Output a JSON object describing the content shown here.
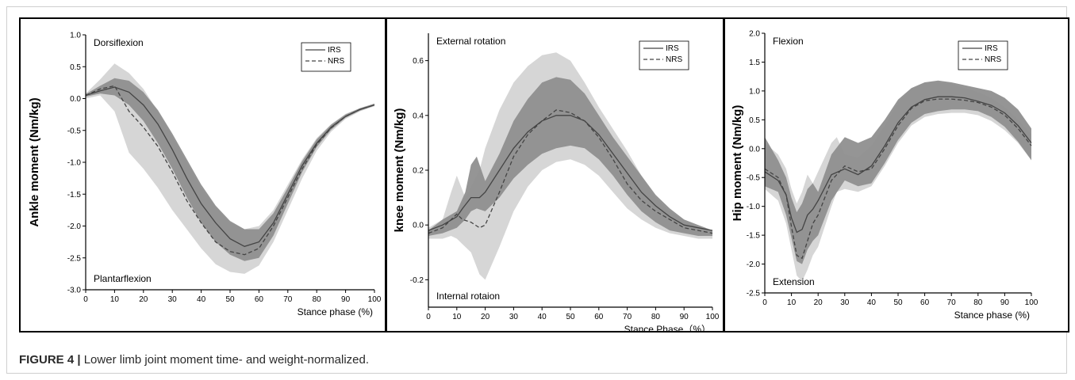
{
  "caption": {
    "label": "FIGURE 4 |",
    "text": " Lower limb joint moment time- and weight-normalized."
  },
  "colors": {
    "band_light": "#d6d6d6",
    "band_dark": "#8f8f8f",
    "line": "#444444"
  },
  "chart_data": [
    {
      "type": "line",
      "ylabel": "Ankle moment (Nm/kg)",
      "xlabel": "Stance phase (%)",
      "annot_top": "Dorsiflexion",
      "annot_bottom": "Plantarflexion",
      "xlim": [
        0,
        100
      ],
      "ylim": [
        -3.0,
        1.0
      ],
      "x_ticks": [
        "0",
        "10",
        "20",
        "30",
        "40",
        "50",
        "60",
        "70",
        "80",
        "90",
        "100"
      ],
      "y_ticks": [
        "1.0",
        "0.5",
        "0.0",
        "-0.5",
        "-1.0",
        "-1.5",
        "-2.0",
        "-2.5",
        "-3.0"
      ],
      "legend": "top-right",
      "series": [
        {
          "name": "IRS",
          "style": "solid",
          "x": [
            0,
            5,
            10,
            15,
            20,
            25,
            30,
            35,
            40,
            45,
            50,
            55,
            60,
            65,
            70,
            75,
            80,
            85,
            90,
            95,
            100
          ],
          "y": [
            0.05,
            0.12,
            0.18,
            0.1,
            -0.1,
            -0.4,
            -0.8,
            -1.25,
            -1.65,
            -1.95,
            -2.2,
            -2.32,
            -2.25,
            -1.95,
            -1.5,
            -1.05,
            -0.7,
            -0.45,
            -0.28,
            -0.17,
            -0.1
          ]
        },
        {
          "name": "NRS",
          "style": "dashed",
          "x": [
            0,
            5,
            10,
            15,
            20,
            25,
            30,
            35,
            40,
            45,
            50,
            55,
            60,
            65,
            70,
            75,
            80,
            85,
            90,
            95,
            100
          ],
          "y": [
            0.05,
            0.15,
            0.2,
            -0.2,
            -0.45,
            -0.75,
            -1.15,
            -1.6,
            -1.95,
            -2.25,
            -2.4,
            -2.45,
            -2.35,
            -2.0,
            -1.55,
            -1.1,
            -0.72,
            -0.46,
            -0.28,
            -0.17,
            -0.1
          ]
        }
      ],
      "band_light": {
        "x": [
          0,
          5,
          10,
          15,
          20,
          25,
          30,
          35,
          40,
          45,
          50,
          55,
          60,
          65,
          70,
          75,
          80,
          85,
          90,
          95,
          100
        ],
        "upper": [
          0.08,
          0.3,
          0.55,
          0.4,
          0.15,
          -0.2,
          -0.6,
          -1.0,
          -1.4,
          -1.7,
          -1.95,
          -2.05,
          -2.0,
          -1.75,
          -1.35,
          -0.95,
          -0.62,
          -0.4,
          -0.24,
          -0.15,
          -0.08
        ],
        "lower": [
          0.0,
          0.05,
          -0.2,
          -0.85,
          -1.1,
          -1.4,
          -1.75,
          -2.05,
          -2.35,
          -2.6,
          -2.72,
          -2.75,
          -2.62,
          -2.25,
          -1.75,
          -1.25,
          -0.82,
          -0.52,
          -0.32,
          -0.2,
          -0.12
        ]
      },
      "band_dark": {
        "x": [
          0,
          5,
          10,
          15,
          20,
          25,
          30,
          35,
          40,
          45,
          50,
          55,
          60,
          65,
          70,
          75,
          80,
          85,
          90,
          95,
          100
        ],
        "upper": [
          0.07,
          0.2,
          0.32,
          0.28,
          0.1,
          -0.18,
          -0.55,
          -0.95,
          -1.35,
          -1.68,
          -1.92,
          -2.05,
          -2.05,
          -1.8,
          -1.4,
          -0.98,
          -0.64,
          -0.41,
          -0.25,
          -0.15,
          -0.08
        ],
        "lower": [
          0.03,
          0.08,
          0.05,
          -0.1,
          -0.35,
          -0.7,
          -1.1,
          -1.55,
          -1.95,
          -2.25,
          -2.45,
          -2.55,
          -2.5,
          -2.15,
          -1.65,
          -1.15,
          -0.76,
          -0.49,
          -0.3,
          -0.19,
          -0.11
        ]
      }
    },
    {
      "type": "line",
      "ylabel": "knee moment (Nm/kg)",
      "xlabel": "Stance Phase（%）",
      "annot_top": "External rotation",
      "annot_bottom": "Internal rotaion",
      "xlim": [
        0,
        100
      ],
      "ylim": [
        -0.3,
        0.7
      ],
      "x_ticks": [
        "0",
        "10",
        "20",
        "30",
        "40",
        "50",
        "60",
        "70",
        "80",
        "90",
        "100"
      ],
      "y_ticks": [
        "0.6",
        "0.4",
        "0.2",
        "0.0",
        "-0.2"
      ],
      "legend": "top-right",
      "series": [
        {
          "name": "IRS",
          "style": "solid",
          "x": [
            0,
            5,
            10,
            12,
            15,
            18,
            20,
            25,
            30,
            35,
            40,
            45,
            50,
            55,
            60,
            65,
            70,
            75,
            80,
            85,
            90,
            95,
            100
          ],
          "y": [
            -0.02,
            0.0,
            0.03,
            0.06,
            0.1,
            0.1,
            0.12,
            0.2,
            0.28,
            0.34,
            0.38,
            0.4,
            0.4,
            0.38,
            0.33,
            0.26,
            0.19,
            0.12,
            0.07,
            0.03,
            0.0,
            -0.01,
            -0.02
          ]
        },
        {
          "name": "NRS",
          "style": "dashed",
          "x": [
            0,
            5,
            10,
            12,
            15,
            18,
            20,
            25,
            30,
            35,
            40,
            45,
            50,
            55,
            60,
            65,
            70,
            75,
            80,
            85,
            90,
            95,
            100
          ],
          "y": [
            -0.03,
            -0.01,
            0.04,
            0.02,
            0.01,
            -0.01,
            0.0,
            0.12,
            0.25,
            0.33,
            0.38,
            0.42,
            0.41,
            0.38,
            0.32,
            0.24,
            0.15,
            0.09,
            0.05,
            0.02,
            -0.01,
            -0.02,
            -0.03
          ]
        }
      ],
      "band_light": {
        "x": [
          0,
          5,
          8,
          10,
          13,
          15,
          18,
          20,
          25,
          30,
          35,
          40,
          45,
          50,
          55,
          60,
          65,
          70,
          75,
          80,
          85,
          90,
          95,
          100
        ],
        "upper": [
          -0.01,
          0.02,
          0.12,
          0.18,
          0.1,
          0.14,
          0.2,
          0.28,
          0.42,
          0.52,
          0.58,
          0.62,
          0.63,
          0.6,
          0.52,
          0.43,
          0.35,
          0.27,
          0.18,
          0.1,
          0.05,
          0.02,
          -0.01,
          -0.02
        ],
        "lower": [
          -0.05,
          -0.05,
          -0.04,
          -0.05,
          -0.08,
          -0.1,
          -0.18,
          -0.2,
          -0.08,
          0.05,
          0.14,
          0.2,
          0.23,
          0.24,
          0.22,
          0.18,
          0.12,
          0.06,
          0.02,
          -0.01,
          -0.03,
          -0.04,
          -0.05,
          -0.05
        ]
      },
      "band_dark": {
        "x": [
          0,
          5,
          10,
          13,
          15,
          17,
          20,
          25,
          30,
          35,
          40,
          45,
          50,
          55,
          60,
          65,
          70,
          75,
          80,
          85,
          90,
          95,
          100
        ],
        "upper": [
          -0.02,
          0.02,
          0.05,
          0.12,
          0.22,
          0.25,
          0.16,
          0.26,
          0.38,
          0.46,
          0.52,
          0.54,
          0.53,
          0.48,
          0.4,
          0.32,
          0.25,
          0.18,
          0.11,
          0.06,
          0.02,
          0.0,
          -0.02
        ],
        "lower": [
          -0.04,
          -0.03,
          -0.01,
          0.02,
          0.05,
          0.06,
          0.05,
          0.1,
          0.17,
          0.22,
          0.26,
          0.28,
          0.29,
          0.28,
          0.24,
          0.18,
          0.11,
          0.05,
          0.01,
          -0.02,
          -0.03,
          -0.04,
          -0.04
        ]
      }
    },
    {
      "type": "line",
      "ylabel": "Hip moment (Nm/kg)",
      "xlabel": "Stance phase (%)",
      "annot_top": "Flexion",
      "annot_bottom": "Extension",
      "xlim": [
        0,
        100
      ],
      "ylim": [
        -2.5,
        2.0
      ],
      "x_ticks": [
        "0",
        "10",
        "20",
        "30",
        "40",
        "50",
        "60",
        "70",
        "80",
        "90",
        "100"
      ],
      "y_ticks": [
        "2.0",
        "1.5",
        "1.0",
        "0.5",
        "0.0",
        "-0.5",
        "-1.0",
        "-1.5",
        "-2.0",
        "-2.5"
      ],
      "legend": "top-right",
      "series": [
        {
          "name": "IRS",
          "style": "solid",
          "x": [
            0,
            5,
            8,
            10,
            12,
            14,
            16,
            18,
            20,
            25,
            30,
            35,
            40,
            45,
            50,
            55,
            60,
            65,
            70,
            75,
            80,
            85,
            90,
            95,
            100
          ],
          "y": [
            -0.4,
            -0.55,
            -0.8,
            -1.2,
            -1.45,
            -1.4,
            -1.15,
            -1.05,
            -0.9,
            -0.45,
            -0.35,
            -0.45,
            -0.3,
            0.05,
            0.45,
            0.72,
            0.85,
            0.9,
            0.9,
            0.88,
            0.82,
            0.75,
            0.62,
            0.4,
            0.1
          ]
        },
        {
          "name": "NRS",
          "style": "dashed",
          "x": [
            0,
            5,
            8,
            10,
            12,
            14,
            16,
            18,
            20,
            25,
            30,
            35,
            40,
            45,
            50,
            55,
            60,
            65,
            70,
            75,
            80,
            85,
            90,
            95,
            100
          ],
          "y": [
            -0.35,
            -0.5,
            -0.8,
            -1.35,
            -1.85,
            -1.9,
            -1.6,
            -1.3,
            -1.15,
            -0.55,
            -0.3,
            -0.4,
            -0.35,
            0.0,
            0.4,
            0.7,
            0.83,
            0.86,
            0.86,
            0.84,
            0.8,
            0.72,
            0.58,
            0.35,
            0.05
          ]
        }
      ],
      "band_light": {
        "x": [
          0,
          5,
          8,
          10,
          12,
          14,
          16,
          18,
          20,
          25,
          27,
          30,
          35,
          40,
          45,
          50,
          55,
          60,
          65,
          70,
          75,
          80,
          85,
          90,
          95,
          100
        ],
        "upper": [
          0.1,
          -0.1,
          -0.35,
          -0.7,
          -0.95,
          -0.75,
          -0.45,
          -0.6,
          -0.4,
          0.1,
          0.2,
          -0.1,
          -0.15,
          0.05,
          0.4,
          0.8,
          1.05,
          1.15,
          1.15,
          1.12,
          1.05,
          0.98,
          0.88,
          0.72,
          0.5,
          0.25
        ],
        "lower": [
          -0.7,
          -0.9,
          -1.3,
          -1.75,
          -2.2,
          -2.3,
          -2.1,
          -1.85,
          -1.7,
          -1.0,
          -0.75,
          -0.7,
          -0.75,
          -0.65,
          -0.3,
          0.1,
          0.4,
          0.55,
          0.6,
          0.62,
          0.62,
          0.58,
          0.48,
          0.32,
          0.1,
          -0.2
        ]
      },
      "band_dark": {
        "x": [
          0,
          5,
          8,
          10,
          12,
          14,
          16,
          18,
          20,
          25,
          30,
          35,
          40,
          45,
          50,
          55,
          60,
          65,
          70,
          75,
          80,
          85,
          90,
          95,
          100
        ],
        "upper": [
          0.2,
          -0.2,
          -0.5,
          -0.85,
          -1.1,
          -0.95,
          -0.7,
          -0.6,
          -0.75,
          -0.1,
          0.2,
          0.1,
          0.2,
          0.5,
          0.85,
          1.05,
          1.15,
          1.18,
          1.15,
          1.1,
          1.05,
          1.0,
          0.88,
          0.68,
          0.35
        ],
        "lower": [
          -0.65,
          -0.75,
          -1.15,
          -1.55,
          -1.95,
          -2.0,
          -1.75,
          -1.6,
          -1.5,
          -0.9,
          -0.55,
          -0.65,
          -0.6,
          -0.25,
          0.15,
          0.45,
          0.6,
          0.65,
          0.68,
          0.68,
          0.65,
          0.55,
          0.38,
          0.12,
          -0.2
        ]
      }
    }
  ]
}
